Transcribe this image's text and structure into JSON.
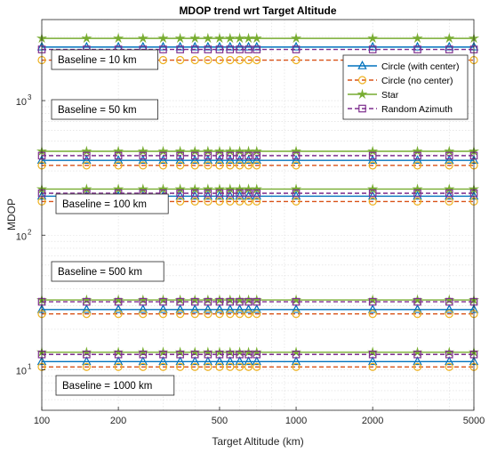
{
  "chart_data": {
    "type": "line",
    "title": "MDOP trend wrt Target Altitude",
    "xlabel": "Target Altitude (km)",
    "ylabel": "MDOP",
    "xscale": "log",
    "yscale": "log",
    "xlim": [
      100,
      5000
    ],
    "ylim": [
      5,
      4000
    ],
    "xticks": [
      100,
      200,
      500,
      1000,
      2000,
      5000
    ],
    "xtick_labels": [
      "100",
      "200",
      "500",
      "1000",
      "2000",
      "5000"
    ],
    "yticks": [
      10,
      100,
      1000
    ],
    "ytick_labels": [
      {
        "base": "10",
        "exp": "1"
      },
      {
        "base": "10",
        "exp": "2"
      },
      {
        "base": "10",
        "exp": "3"
      }
    ],
    "grid": true,
    "legend_position": "top-right",
    "x": [
      100,
      150,
      200,
      250,
      300,
      350,
      400,
      450,
      500,
      550,
      600,
      650,
      700,
      1000,
      2000,
      3000,
      4000,
      5000
    ],
    "groups": [
      {
        "label": "Baseline = 10 km",
        "values": {
          "Circle (with center)": 2500,
          "Circle (no center)": 2000,
          "Star": 2900,
          "Random Azimuth": 2400
        }
      },
      {
        "label": "Baseline = 50 km",
        "values": {
          "Circle (with center)": 360,
          "Circle (no center)": 330,
          "Star": 420,
          "Random Azimuth": 390
        }
      },
      {
        "label": "Baseline = 100 km",
        "values": {
          "Circle (with center)": 195,
          "Circle (no center)": 178,
          "Star": 220,
          "Random Azimuth": 205
        }
      },
      {
        "label": "Baseline = 500 km",
        "values": {
          "Circle (with center)": 28,
          "Circle (no center)": 26,
          "Star": 33,
          "Random Azimuth": 32
        }
      },
      {
        "label": "Baseline = 1000 km",
        "values": {
          "Circle (with center)": 11.5,
          "Circle (no center)": 10.5,
          "Star": 13.5,
          "Random Azimuth": 13
        }
      }
    ],
    "series": [
      {
        "name": "Circle (with center)",
        "color": "#0072BD",
        "marker": "triangle",
        "dash": "solid"
      },
      {
        "name": "Circle (no center)",
        "color": "#D95319",
        "marker": "circle",
        "dash": "dashed",
        "marker_color": "#EDB120"
      },
      {
        "name": "Star",
        "color": "#77AC30",
        "marker": "star",
        "dash": "solid"
      },
      {
        "name": "Random Azimuth",
        "color": "#7E2F8E",
        "marker": "square",
        "dash": "dashed"
      }
    ]
  }
}
